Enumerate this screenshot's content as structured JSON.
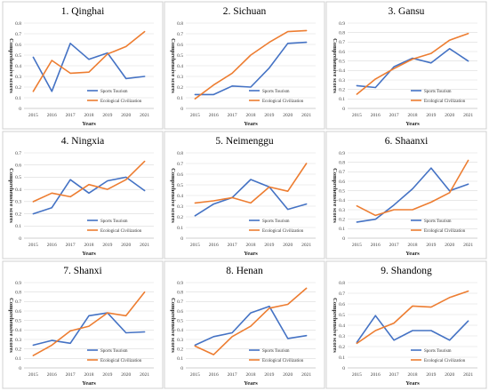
{
  "colors": {
    "sports": "#4472c4",
    "ecological": "#ed7d31"
  },
  "chart_data": [
    {
      "type": "line",
      "title": "1. Qinghai",
      "x": [
        "2015",
        "2016",
        "2017",
        "2018",
        "2019",
        "2020",
        "2021"
      ],
      "xlabel": "Years",
      "ylabel": "Comprehensive scores",
      "ylim": [
        0,
        0.8
      ],
      "yticks": [
        "0",
        "0.1",
        "0.2",
        "0.3",
        "0.4",
        "0.5",
        "0.6",
        "0.7",
        "0.8"
      ],
      "grid": true,
      "legend_position": "bottom-right",
      "series": [
        {
          "name": "Sports Tourism",
          "values": [
            0.48,
            0.16,
            0.61,
            0.46,
            0.52,
            0.28,
            0.3
          ]
        },
        {
          "name": "Ecological Civilization",
          "values": [
            0.16,
            0.45,
            0.33,
            0.34,
            0.51,
            0.58,
            0.72
          ]
        }
      ]
    },
    {
      "type": "line",
      "title": "2. Sichuan",
      "x": [
        "2015",
        "2016",
        "2017",
        "2018",
        "2019",
        "2020",
        "2021"
      ],
      "xlabel": "Years",
      "ylabel": "Comprehensive scores",
      "ylim": [
        0,
        0.8
      ],
      "yticks": [
        "0",
        "0.1",
        "0.2",
        "0.3",
        "0.4",
        "0.5",
        "0.6",
        "0.7",
        "0.8"
      ],
      "grid": true,
      "legend_position": "bottom-right",
      "series": [
        {
          "name": "Sports Tourism",
          "values": [
            0.13,
            0.13,
            0.21,
            0.2,
            0.38,
            0.61,
            0.62
          ]
        },
        {
          "name": "Ecological Civilization",
          "values": [
            0.09,
            0.22,
            0.33,
            0.5,
            0.62,
            0.72,
            0.73
          ]
        }
      ]
    },
    {
      "type": "line",
      "title": "3. Gansu",
      "x": [
        "2015",
        "2016",
        "2017",
        "2018",
        "2019",
        "2020",
        "2021"
      ],
      "xlabel": "Years",
      "ylabel": "Comprehensive scores",
      "ylim": [
        0,
        0.9
      ],
      "yticks": [
        "0",
        "0.1",
        "0.2",
        "0.3",
        "0.4",
        "0.5",
        "0.6",
        "0.7",
        "0.8",
        "0.9"
      ],
      "grid": true,
      "legend_position": "bottom-right",
      "series": [
        {
          "name": "Sports Tourism",
          "values": [
            0.24,
            0.22,
            0.44,
            0.53,
            0.48,
            0.63,
            0.5
          ]
        },
        {
          "name": "Ecological Civilization",
          "values": [
            0.15,
            0.31,
            0.42,
            0.52,
            0.58,
            0.72,
            0.79
          ]
        }
      ]
    },
    {
      "type": "line",
      "title": "4. Ningxia",
      "x": [
        "2015",
        "2016",
        "2017",
        "2018",
        "2019",
        "2020",
        "2021"
      ],
      "xlabel": "Years",
      "ylabel": "Comprehensive scores",
      "ylim": [
        0,
        0.7
      ],
      "yticks": [
        "0",
        "0.1",
        "0.2",
        "0.3",
        "0.4",
        "0.5",
        "0.6",
        "0.7"
      ],
      "grid": true,
      "legend_position": "bottom-right",
      "series": [
        {
          "name": "Sports Tourism",
          "values": [
            0.2,
            0.25,
            0.48,
            0.37,
            0.47,
            0.5,
            0.39
          ]
        },
        {
          "name": "Ecological Civilization",
          "values": [
            0.3,
            0.37,
            0.34,
            0.44,
            0.4,
            0.48,
            0.63
          ]
        }
      ]
    },
    {
      "type": "line",
      "title": "5. Neimenggu",
      "x": [
        "2015",
        "2016",
        "2017",
        "2018",
        "2019",
        "2020",
        "2021"
      ],
      "xlabel": "Years",
      "ylabel": "Comprehensive scores",
      "ylim": [
        0,
        0.8
      ],
      "yticks": [
        "0",
        "0.1",
        "0.2",
        "0.3",
        "0.4",
        "0.5",
        "0.6",
        "0.7",
        "0.8"
      ],
      "grid": true,
      "legend_position": "bottom-right",
      "series": [
        {
          "name": "Sports Tourism",
          "values": [
            0.21,
            0.32,
            0.38,
            0.55,
            0.48,
            0.27,
            0.32
          ]
        },
        {
          "name": "Ecological Civilization",
          "values": [
            0.33,
            0.35,
            0.38,
            0.33,
            0.48,
            0.44,
            0.7
          ]
        }
      ]
    },
    {
      "type": "line",
      "title": "6. Shaanxi",
      "x": [
        "2015",
        "2016",
        "2017",
        "2018",
        "2019",
        "2020",
        "2021"
      ],
      "xlabel": "Years",
      "ylabel": "Comprehensive scores",
      "ylim": [
        0,
        0.9
      ],
      "yticks": [
        "0",
        "0.1",
        "0.2",
        "0.3",
        "0.4",
        "0.5",
        "0.6",
        "0.7",
        "0.8",
        "0.9"
      ],
      "grid": true,
      "legend_position": "bottom-right",
      "series": [
        {
          "name": "Sports Tourism",
          "values": [
            0.17,
            0.2,
            0.35,
            0.52,
            0.74,
            0.5,
            0.57
          ]
        },
        {
          "name": "Ecological Civilization",
          "values": [
            0.34,
            0.24,
            0.3,
            0.3,
            0.38,
            0.48,
            0.82
          ]
        }
      ]
    },
    {
      "type": "line",
      "title": "7. Shanxi",
      "x": [
        "2015",
        "2016",
        "2017",
        "2018",
        "2019",
        "2020",
        "2021"
      ],
      "xlabel": "Years",
      "ylabel": "Comprehensive scores",
      "ylim": [
        0,
        0.9
      ],
      "yticks": [
        "0",
        "0.1",
        "0.2",
        "0.3",
        "0.4",
        "0.5",
        "0.6",
        "0.7",
        "0.8",
        "0.9"
      ],
      "grid": true,
      "legend_position": "bottom-right",
      "series": [
        {
          "name": "Sports Tourism",
          "values": [
            0.24,
            0.29,
            0.26,
            0.55,
            0.58,
            0.37,
            0.38
          ]
        },
        {
          "name": "Ecological Civilization",
          "values": [
            0.13,
            0.24,
            0.39,
            0.44,
            0.58,
            0.55,
            0.8
          ]
        }
      ]
    },
    {
      "type": "line",
      "title": "8. Henan",
      "x": [
        "2015",
        "2016",
        "2017",
        "2018",
        "2019",
        "2020",
        "2021"
      ],
      "xlabel": "Years",
      "ylabel": "Comprehensive scores",
      "ylim": [
        0,
        0.9
      ],
      "yticks": [
        "0",
        "0.1",
        "0.2",
        "0.3",
        "0.4",
        "0.5",
        "0.6",
        "0.7",
        "0.8",
        "0.9"
      ],
      "grid": true,
      "legend_position": "bottom-right",
      "series": [
        {
          "name": "Sports Tourism",
          "values": [
            0.24,
            0.33,
            0.37,
            0.58,
            0.65,
            0.31,
            0.34
          ]
        },
        {
          "name": "Ecological Civilization",
          "values": [
            0.23,
            0.14,
            0.33,
            0.44,
            0.63,
            0.67,
            0.84
          ]
        }
      ]
    },
    {
      "type": "line",
      "title": "9. Shandong",
      "x": [
        "2015",
        "2016",
        "2017",
        "2018",
        "2019",
        "2020",
        "2021"
      ],
      "xlabel": "Years",
      "ylabel": "Comprehensive scores",
      "ylim": [
        0,
        0.8
      ],
      "yticks": [
        "0",
        "0.1",
        "0.2",
        "0.3",
        "0.4",
        "0.5",
        "0.6",
        "0.7",
        "0.8"
      ],
      "grid": true,
      "legend_position": "bottom-right",
      "series": [
        {
          "name": "Sports Tourism",
          "values": [
            0.24,
            0.49,
            0.26,
            0.35,
            0.35,
            0.26,
            0.44
          ]
        },
        {
          "name": "Ecological Civilization",
          "values": [
            0.23,
            0.35,
            0.42,
            0.58,
            0.57,
            0.66,
            0.72
          ]
        }
      ]
    }
  ]
}
